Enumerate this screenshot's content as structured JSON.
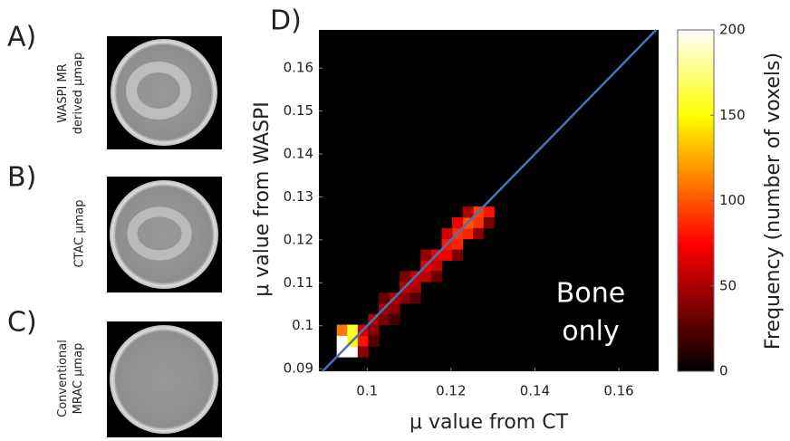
{
  "panels": [
    {
      "label": "A)",
      "caption": [
        "WASPI MR",
        "derived μmap"
      ]
    },
    {
      "label": "B)",
      "caption": [
        "CTAC μmap"
      ]
    },
    {
      "label": "C)",
      "caption": [
        "Conventional",
        "MRAC μmap"
      ]
    }
  ],
  "chart_data": {
    "type": "heatmap",
    "title": "D)",
    "xlabel": "μ value from CT",
    "ylabel": "μ value from WASPI",
    "xlim": [
      0.0885,
      0.1695
    ],
    "ylim": [
      0.0894,
      0.1689
    ],
    "xticks": [
      0.1,
      0.12,
      0.14,
      0.16
    ],
    "yticks": [
      0.09,
      0.1,
      0.11,
      0.12,
      0.13,
      0.14,
      0.15,
      0.16
    ],
    "bin_width": 0.0025,
    "colormap": "hot",
    "identity_line": true,
    "line_color": "#4a72b8",
    "cells": {
      "x": [
        0.094,
        0.0965,
        0.094,
        0.0965,
        0.094,
        0.0965,
        0.099,
        0.099,
        0.099,
        0.1015,
        0.1015,
        0.104,
        0.104,
        0.1065,
        0.1065,
        0.109,
        0.109,
        0.1115,
        0.1115,
        0.114,
        0.114,
        0.1165,
        0.1165,
        0.119,
        0.119,
        0.1215,
        0.1215,
        0.124,
        0.124,
        0.1265,
        0.1265,
        0.129,
        0.1215,
        0.119,
        0.114,
        0.109,
        0.104,
        0.1115,
        0.1165,
        0.1215,
        0.1065,
        0.1015,
        0.1265,
        0.129,
        0.124
      ],
      "y": [
        0.094,
        0.094,
        0.0965,
        0.0965,
        0.099,
        0.099,
        0.0965,
        0.094,
        0.099,
        0.099,
        0.1015,
        0.1015,
        0.104,
        0.104,
        0.1065,
        0.1065,
        0.109,
        0.109,
        0.1115,
        0.1115,
        0.114,
        0.114,
        0.1165,
        0.1165,
        0.119,
        0.119,
        0.1215,
        0.1215,
        0.124,
        0.124,
        0.1265,
        0.1265,
        0.124,
        0.1215,
        0.1165,
        0.1115,
        0.1065,
        0.1065,
        0.1115,
        0.1165,
        0.1015,
        0.0965,
        0.1215,
        0.124,
        0.1265
      ],
      "values": [
        200,
        200,
        200,
        150,
        110,
        160,
        80,
        40,
        60,
        40,
        50,
        35,
        45,
        40,
        50,
        40,
        55,
        50,
        60,
        55,
        65,
        60,
        70,
        70,
        80,
        85,
        90,
        85,
        100,
        90,
        95,
        80,
        70,
        60,
        45,
        35,
        30,
        25,
        30,
        35,
        20,
        25,
        40,
        35,
        50
      ]
    },
    "annotation": [
      "Bone",
      "only"
    ],
    "colorbar": {
      "label": "Frequency (number of voxels)",
      "lim": [
        0,
        200
      ],
      "ticks": [
        0,
        50,
        100,
        150,
        200
      ]
    }
  }
}
